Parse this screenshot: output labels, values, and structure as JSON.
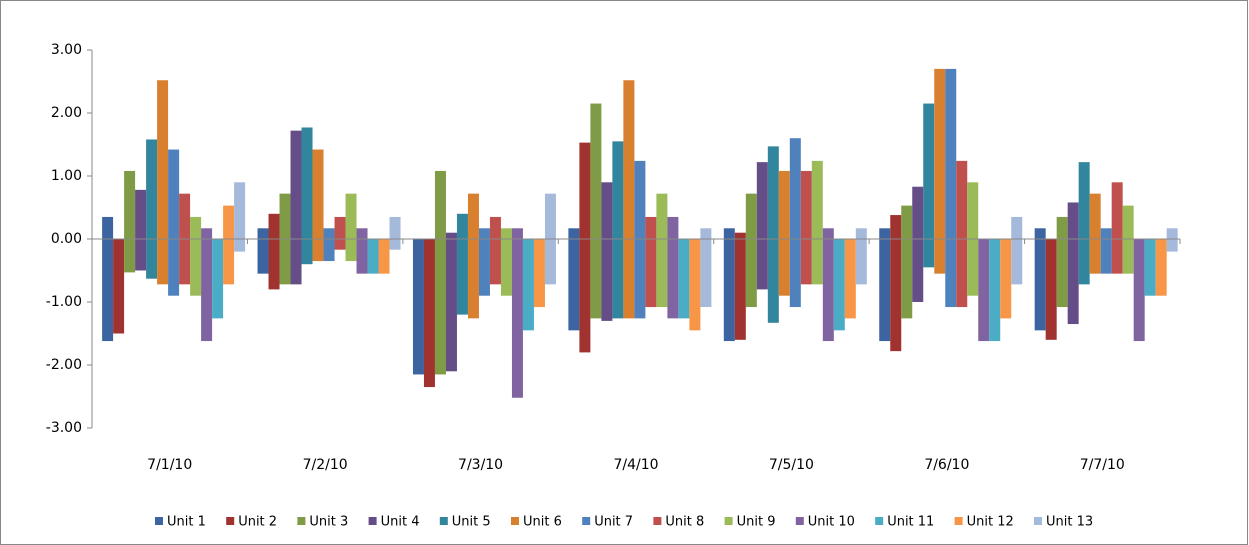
{
  "chart_data": {
    "type": "floating-bar",
    "categories": [
      "7/1/10",
      "7/2/10",
      "7/3/10",
      "7/4/10",
      "7/5/10",
      "7/6/10",
      "7/7/10"
    ],
    "ylim": [
      -3,
      3
    ],
    "yticks": [
      {
        "value": 3,
        "label": "3.00"
      },
      {
        "value": 2,
        "label": "2.00"
      },
      {
        "value": 1,
        "label": "1.00"
      },
      {
        "value": 0,
        "label": "0.00"
      },
      {
        "value": -1,
        "label": "-1.00"
      },
      {
        "value": -2,
        "label": "-2.00"
      },
      {
        "value": -3,
        "label": "-3.00"
      }
    ],
    "series": [
      {
        "name": "Unit 1",
        "color": "#3B64A0",
        "values": [
          0.35,
          0.17,
          0,
          0.17,
          0.17,
          0.17,
          0.17
        ],
        "low_values": [
          -1.62,
          -0.55,
          -2.15,
          -1.45,
          -1.62,
          -1.62,
          -1.45
        ]
      },
      {
        "name": "Unit 2",
        "color": "#A0322F",
        "values": [
          0,
          0.4,
          0,
          1.53,
          0.1,
          0.38,
          0
        ],
        "low_values": [
          -1.5,
          -0.8,
          -2.35,
          -1.8,
          -1.6,
          -1.78,
          -1.6
        ]
      },
      {
        "name": "Unit 3",
        "color": "#7F9B45",
        "values": [
          1.08,
          0.72,
          1.08,
          2.15,
          0.72,
          0.53,
          0.35
        ],
        "low_values": [
          -0.53,
          -0.72,
          -2.15,
          -1.26,
          -1.08,
          -1.26,
          -1.08
        ]
      },
      {
        "name": "Unit 4",
        "color": "#654E87",
        "values": [
          0.78,
          1.72,
          0.1,
          0.9,
          1.22,
          0.83,
          0.58
        ],
        "low_values": [
          -0.5,
          -0.72,
          -2.1,
          -1.3,
          -0.8,
          -1.0,
          -1.35
        ]
      },
      {
        "name": "Unit 5",
        "color": "#31859C",
        "values": [
          1.58,
          1.77,
          0.4,
          1.55,
          1.47,
          2.15,
          1.22
        ],
        "low_values": [
          -0.63,
          -0.4,
          -1.2,
          -1.26,
          -1.33,
          -0.45,
          -0.72
        ]
      },
      {
        "name": "Unit 6",
        "color": "#D9802F",
        "values": [
          2.52,
          1.42,
          0.72,
          2.52,
          1.08,
          2.7,
          0.72
        ],
        "low_values": [
          -0.72,
          -0.35,
          -1.26,
          -1.26,
          -0.9,
          -0.55,
          -0.55
        ]
      },
      {
        "name": "Unit 7",
        "color": "#4F81BD",
        "values": [
          1.42,
          0.17,
          0.17,
          1.24,
          1.6,
          2.7,
          0.17
        ],
        "low_values": [
          -0.9,
          -0.35,
          -0.9,
          -1.26,
          -1.08,
          -1.08,
          -0.55
        ]
      },
      {
        "name": "Unit 8",
        "color": "#C0504D",
        "values": [
          0.72,
          0.35,
          0.35,
          0.35,
          1.08,
          1.24,
          0.9
        ],
        "low_values": [
          -0.72,
          -0.17,
          -0.72,
          -1.08,
          -0.72,
          -1.08,
          -0.55
        ]
      },
      {
        "name": "Unit 9",
        "color": "#9BBB59",
        "values": [
          0.35,
          0.72,
          0.17,
          0.72,
          1.24,
          0.9,
          0.53
        ],
        "low_values": [
          -0.9,
          -0.35,
          -0.9,
          -1.08,
          -0.72,
          -0.9,
          -0.55
        ]
      },
      {
        "name": "Unit 10",
        "color": "#8064A2",
        "values": [
          0.17,
          0.17,
          0.17,
          0.35,
          0.17,
          0,
          0
        ],
        "low_values": [
          -1.62,
          -0.55,
          -2.52,
          -1.26,
          -1.62,
          -1.62,
          -1.62
        ]
      },
      {
        "name": "Unit 11",
        "color": "#4BACC6",
        "values": [
          0,
          0,
          0,
          0,
          0,
          0,
          0
        ],
        "low_values": [
          -1.26,
          -0.55,
          -1.45,
          -1.26,
          -1.45,
          -1.62,
          -0.9
        ]
      },
      {
        "name": "Unit 12",
        "color": "#F79646",
        "values": [
          0.53,
          0,
          0,
          0,
          0,
          0,
          0
        ],
        "low_values": [
          -0.72,
          -0.55,
          -1.08,
          -1.45,
          -1.26,
          -1.26,
          -0.9
        ]
      },
      {
        "name": "Unit 13",
        "color": "#A5B9DB",
        "values": [
          0.9,
          0.35,
          0.72,
          0.17,
          0.17,
          0.35,
          0.17
        ],
        "low_values": [
          -0.2,
          -0.17,
          -0.72,
          -1.08,
          -0.72,
          -0.72,
          -0.2
        ]
      }
    ]
  }
}
